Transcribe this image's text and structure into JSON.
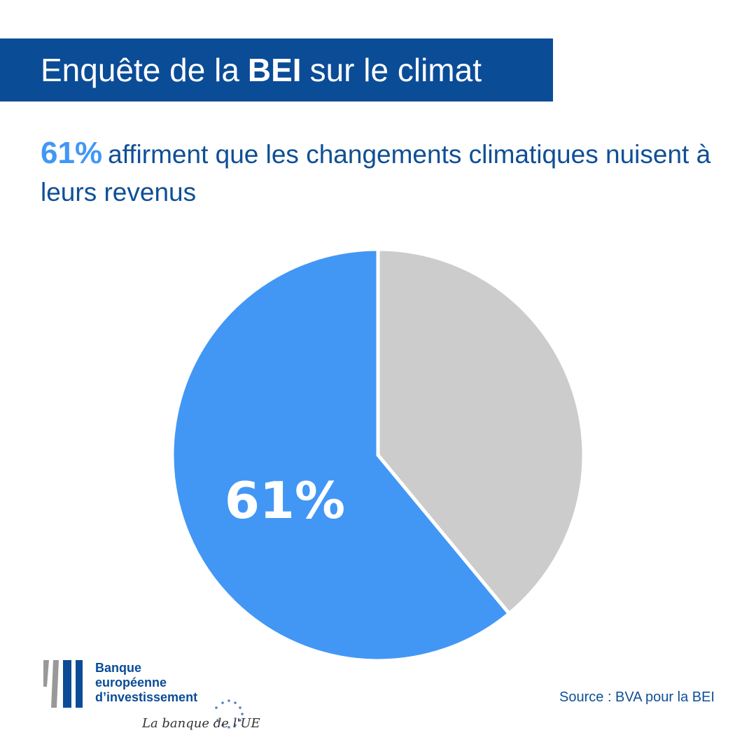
{
  "header": {
    "title_pre": "Enquête de la",
    "title_bold": "BEI",
    "title_post": "sur le climat"
  },
  "headline": {
    "percent": "61%",
    "text": "affirment que les changements climatiques nuisent à leurs revenus"
  },
  "chart_data": {
    "type": "pie",
    "slices": [
      {
        "value": 61,
        "label": "61%",
        "color": "#4297f5"
      },
      {
        "value": 39,
        "label": "",
        "color": "#cccccc"
      }
    ]
  },
  "logo": {
    "line1": "Banque",
    "line2": "européenne",
    "line3": "d’investissement",
    "tagline": "La banque de l'UE"
  },
  "source": "Source : BVA pour la BEI",
  "colors": {
    "brand_blue": "#0b4c97",
    "accent_blue": "#4297f5",
    "grey": "#cccccc"
  }
}
